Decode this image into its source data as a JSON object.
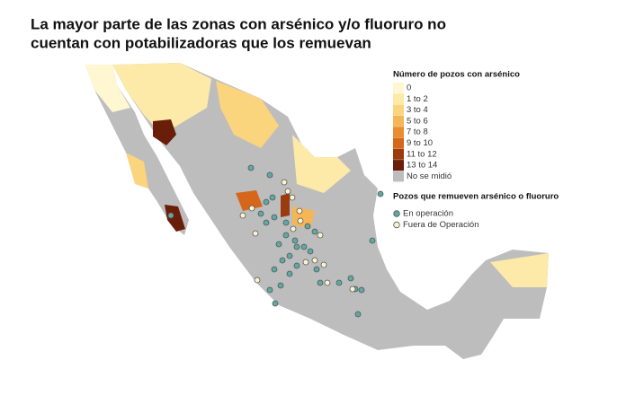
{
  "title_lines": [
    "La mayor parte de las zonas con arsénico y/o fluoruro no",
    "cuentan con potabilizadoras que los remuevan"
  ],
  "legend_arsenic": {
    "title": "Número de pozos con arsénico",
    "items": [
      {
        "label": "0",
        "color": "#fff6d2"
      },
      {
        "label": "1 to 2",
        "color": "#fdeaa8"
      },
      {
        "label": "3 to 4",
        "color": "#fbd47e"
      },
      {
        "label": "5 to 6",
        "color": "#f5b656"
      },
      {
        "label": "7 to 8",
        "color": "#eb8c30"
      },
      {
        "label": "9 to 10",
        "color": "#d5661a"
      },
      {
        "label": "11 to 12",
        "color": "#9c3b0d"
      },
      {
        "label": "13 to 14",
        "color": "#6a1d09"
      },
      {
        "label": "No se midió",
        "color": "#bdbdbd"
      }
    ]
  },
  "legend_plants": {
    "title": "Pozos que remueven arsénico o fluoruro",
    "items": [
      {
        "label": "En operación",
        "color": "#5fa9a3"
      },
      {
        "label": "Fuera de Operación",
        "color": "#fbf3cf"
      }
    ]
  }
}
